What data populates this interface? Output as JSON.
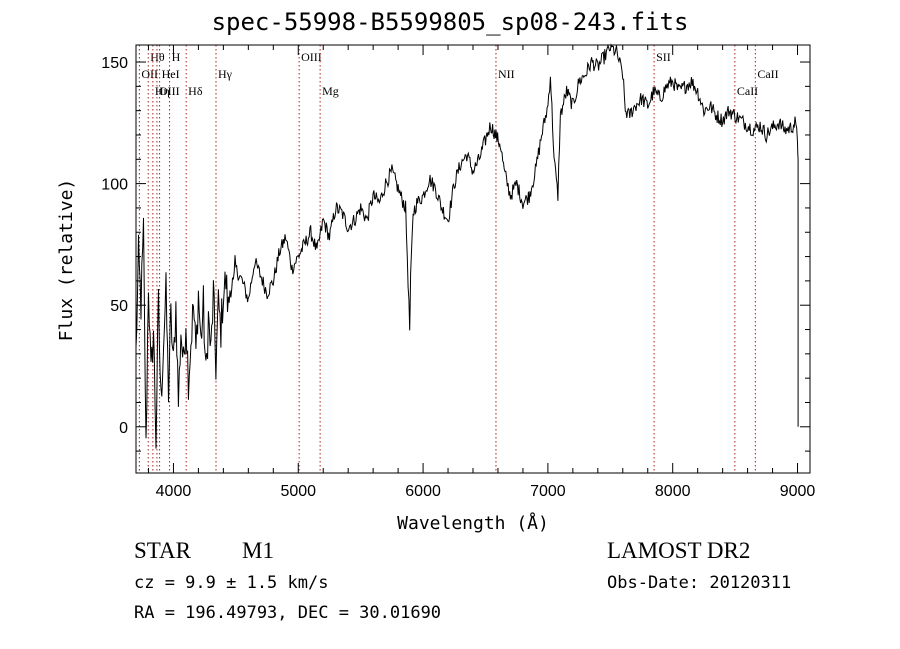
{
  "chart_data": {
    "type": "line",
    "title": "spec-55998-B5599805_sp08-243.fits",
    "xlabel": "Wavelength (Å)",
    "ylabel": "Flux (relative)",
    "xlim": [
      3700,
      9100
    ],
    "ylim": [
      -19,
      157
    ],
    "xticks": [
      4000,
      5000,
      6000,
      7000,
      8000,
      9000
    ],
    "yticks": [
      0,
      50,
      100,
      150
    ],
    "grid": false,
    "colors": {
      "spectrum": "#000000",
      "lines": "#b22222"
    },
    "spectral_lines": [
      {
        "name": "Hθ",
        "wavelength": 3798,
        "row": 1
      },
      {
        "name": "H",
        "wavelength": 3969,
        "row": 1
      },
      {
        "name": "OIII",
        "wavelength": 5007,
        "row": 1
      },
      {
        "name": "NII",
        "wavelength": 6584,
        "row": 2
      },
      {
        "name": "SII",
        "wavelength": 7851,
        "row": 1
      },
      {
        "name": "OII",
        "wavelength": 3727,
        "row": 2
      },
      {
        "name": "HeI",
        "wavelength": 3889,
        "row": 2
      },
      {
        "name": "Hγ",
        "wavelength": 4341,
        "row": 2
      },
      {
        "name": "CaII",
        "wavelength": 8662,
        "row": 2
      },
      {
        "name": "OIII",
        "wavelength": 3868,
        "row": 3
      },
      {
        "name": "Hη",
        "wavelength": 3835,
        "row": 3
      },
      {
        "name": "Hδ",
        "wavelength": 4102,
        "row": 3
      },
      {
        "name": "Mg",
        "wavelength": 5175,
        "row": 3
      },
      {
        "name": "CaII",
        "wavelength": 8498,
        "row": 3
      }
    ],
    "spectrum": {
      "x": [
        3700,
        3720,
        3740,
        3760,
        3780,
        3800,
        3820,
        3840,
        3860,
        3880,
        3900,
        3920,
        3940,
        3960,
        3980,
        4000,
        4020,
        4040,
        4060,
        4080,
        4100,
        4120,
        4140,
        4160,
        4180,
        4200,
        4220,
        4240,
        4260,
        4280,
        4300,
        4320,
        4340,
        4360,
        4380,
        4400,
        4420,
        4440,
        4460,
        4480,
        4500,
        4550,
        4600,
        4650,
        4700,
        4750,
        4800,
        4850,
        4900,
        4950,
        5000,
        5050,
        5100,
        5150,
        5200,
        5250,
        5300,
        5350,
        5400,
        5450,
        5500,
        5550,
        5600,
        5650,
        5700,
        5750,
        5800,
        5820,
        5860,
        5880,
        5893,
        5900,
        5920,
        5950,
        6000,
        6050,
        6100,
        6150,
        6200,
        6250,
        6300,
        6350,
        6400,
        6450,
        6500,
        6540,
        6563,
        6580,
        6620,
        6650,
        6700,
        6750,
        6800,
        6850,
        6900,
        6950,
        7000,
        7020,
        7050,
        7080,
        7100,
        7150,
        7200,
        7250,
        7300,
        7350,
        7400,
        7450,
        7500,
        7550,
        7600,
        7620,
        7650,
        7700,
        7750,
        7800,
        7850,
        7900,
        7950,
        8000,
        8050,
        8100,
        8150,
        8200,
        8250,
        8300,
        8350,
        8400,
        8450,
        8500,
        8550,
        8600,
        8650,
        8700,
        8750,
        8800,
        8850,
        8900,
        8950,
        8980,
        9000,
        9005
      ],
      "y": [
        30,
        70,
        50,
        80,
        -10,
        60,
        20,
        40,
        -5,
        50,
        10,
        35,
        55,
        15,
        45,
        25,
        50,
        10,
        40,
        25,
        45,
        20,
        35,
        50,
        30,
        55,
        35,
        50,
        20,
        45,
        30,
        55,
        25,
        50,
        40,
        55,
        60,
        48,
        62,
        55,
        65,
        60,
        52,
        68,
        62,
        55,
        60,
        72,
        78,
        65,
        70,
        75,
        80,
        72,
        85,
        78,
        90,
        88,
        82,
        85,
        90,
        85,
        95,
        92,
        100,
        105,
        98,
        95,
        90,
        60,
        40,
        60,
        88,
        92,
        95,
        102,
        98,
        90,
        85,
        100,
        108,
        112,
        105,
        110,
        118,
        124,
        122,
        120,
        116,
        105,
        95,
        100,
        92,
        95,
        105,
        120,
        132,
        145,
        110,
        95,
        128,
        138,
        132,
        142,
        145,
        150,
        148,
        152,
        156,
        154,
        145,
        130,
        128,
        132,
        135,
        132,
        138,
        135,
        140,
        142,
        138,
        140,
        142,
        138,
        130,
        132,
        128,
        126,
        130,
        128,
        126,
        124,
        122,
        124,
        120,
        123,
        125,
        122,
        123,
        125,
        118,
        110
      ]
    }
  },
  "footer": {
    "class": "STAR",
    "subclass": "M1",
    "survey": "LAMOST DR2",
    "cz": "cz = 9.9 ± 1.5 km/s",
    "obs_date": "Obs-Date: 20120311",
    "coords": "RA = 196.49793, DEC =  30.01690"
  }
}
